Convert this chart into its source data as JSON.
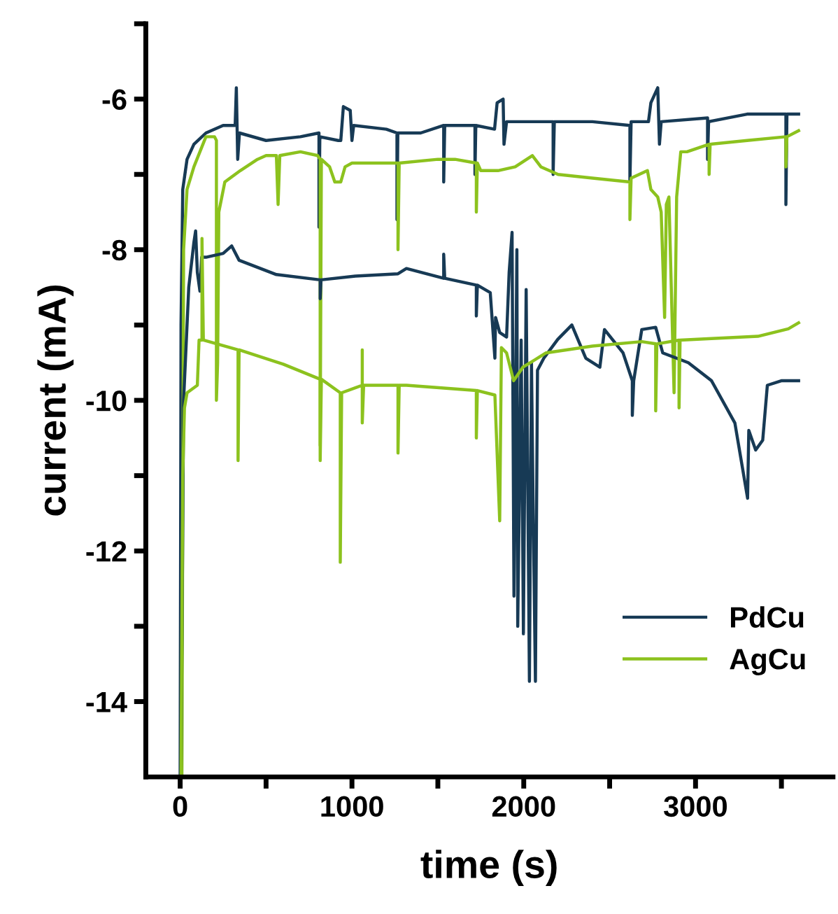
{
  "chart_data": {
    "type": "line",
    "xlabel": "time (s)",
    "ylabel": "current (mA)",
    "xlim": [
      -200,
      3800
    ],
    "ylim": [
      -15,
      -5
    ],
    "xticks": [
      0,
      {
        "value": 500,
        "label": null
      },
      1000,
      {
        "value": 1500,
        "label": null
      },
      2000,
      {
        "value": 2500,
        "label": null
      },
      3000,
      {
        "value": 3500,
        "label": null
      }
    ],
    "yticks": [
      {
        "value": -5,
        "label": null
      },
      -6,
      {
        "value": -7,
        "label": null
      },
      -8,
      {
        "value": -9,
        "label": null
      },
      -10,
      {
        "value": -11,
        "label": null
      },
      -12,
      {
        "value": -13,
        "label": null
      },
      -14
    ],
    "grid": false,
    "legend": "bottom right",
    "marker": "none",
    "line_style": "solid",
    "series": [
      {
        "name": "PdCu",
        "color": "#173a55",
        "x": [
          0,
          5,
          15,
          40,
          80,
          150,
          250,
          320,
          327,
          335,
          345,
          500,
          700,
          808,
          808,
          813,
          920,
          935,
          950,
          990,
          1000,
          1010,
          1200,
          1262,
          1262,
          1267,
          1400,
          1534,
          1534,
          1540,
          1716,
          1716,
          1721,
          1830,
          1845,
          1880,
          1885,
          1900,
          2171,
          2171,
          2178,
          2400,
          2618,
          2618,
          2625,
          2726,
          2740,
          2780,
          2790,
          2800,
          3070,
          3070,
          3076,
          3300,
          3526,
          3526,
          3532,
          3600
        ],
        "values": [
          -15,
          -9,
          -7.2,
          -6.8,
          -6.6,
          -6.45,
          -6.35,
          -6.35,
          -5.85,
          -6.8,
          -6.45,
          -6.55,
          -6.5,
          -6.45,
          -7.7,
          -6.5,
          -6.55,
          -6.55,
          -6.1,
          -6.15,
          -6.55,
          -6.35,
          -6.4,
          -6.45,
          -7.6,
          -6.45,
          -6.45,
          -6.35,
          -7.1,
          -6.35,
          -6.35,
          -7.0,
          -6.35,
          -6.4,
          -6.05,
          -6.0,
          -6.6,
          -6.3,
          -6.3,
          -7.0,
          -6.3,
          -6.3,
          -6.35,
          -7.1,
          -6.3,
          -6.3,
          -6.05,
          -5.85,
          -6.6,
          -6.3,
          -6.25,
          -6.8,
          -6.3,
          -6.2,
          -6.2,
          -7.4,
          -6.2,
          -6.2
        ]
      },
      {
        "name": "AgCu",
        "color": "#8cc21e",
        "x": [
          10,
          20,
          40,
          80,
          150,
          200,
          211,
          211,
          218,
          225,
          260,
          350,
          450,
          500,
          560,
          570,
          580,
          700,
          800,
          815,
          815,
          822,
          870,
          900,
          935,
          960,
          1000,
          1268,
          1268,
          1275,
          1500,
          1600,
          1724,
          1724,
          1730,
          1750,
          1850,
          1950,
          2050,
          2100,
          2200,
          2400,
          2618,
          2618,
          2625,
          2720,
          2740,
          2780,
          2800,
          2820,
          2830,
          2845,
          2875,
          2890,
          2914,
          2950,
          3079,
          3079,
          3085,
          3300,
          3526,
          3526,
          3532,
          3600
        ],
        "values": [
          -15,
          -8,
          -7.2,
          -6.9,
          -6.5,
          -6.5,
          -6.55,
          -10,
          -9.5,
          -7.5,
          -7.1,
          -6.95,
          -6.8,
          -6.75,
          -6.75,
          -7.4,
          -6.75,
          -6.7,
          -6.75,
          -6.8,
          -10.6,
          -6.8,
          -6.9,
          -7.1,
          -7.1,
          -6.9,
          -6.85,
          -6.85,
          -8.0,
          -6.85,
          -6.8,
          -6.8,
          -6.85,
          -7.5,
          -6.85,
          -6.95,
          -6.95,
          -6.9,
          -6.75,
          -6.9,
          -7.0,
          -7.05,
          -7.1,
          -7.6,
          -7.05,
          -6.95,
          -7.2,
          -7.3,
          -7.5,
          -8.9,
          -7.4,
          -7.3,
          -9.9,
          -7.3,
          -6.7,
          -6.7,
          -6.6,
          -7.0,
          -6.6,
          -6.55,
          -6.5,
          -6.9,
          -6.5,
          -6.42
        ]
      },
      {
        "color": "#173a55",
        "x": [
          5,
          20,
          50,
          80,
          90,
          100,
          115,
          125,
          150,
          250,
          300,
          343,
          560,
          815,
          815,
          820,
          1020,
          1268,
          1317,
          1534,
          1534,
          1540,
          1724,
          1724,
          1730,
          1805,
          1832,
          1836,
          1860,
          1900,
          1915,
          1932,
          1943,
          1960,
          1965,
          1985,
          1998,
          2014,
          2033,
          2045,
          2055,
          2068,
          2080,
          2117,
          2198,
          2280,
          2361,
          2443,
          2470,
          2578,
          2632,
          2632,
          2640,
          2687,
          2768,
          2809,
          2958,
          3093,
          3229,
          3303,
          3310,
          3350,
          3391,
          3418,
          3499,
          3600
        ],
        "values": [
          -15,
          -10,
          -8.5,
          -7.9,
          -7.75,
          -8.3,
          -8.55,
          -8.1,
          -8.1,
          -8.05,
          -7.95,
          -8.14,
          -8.33,
          -8.4,
          -8.65,
          -8.4,
          -8.35,
          -8.32,
          -8.25,
          -8.38,
          -8.06,
          -8.38,
          -8.47,
          -8.88,
          -8.47,
          -8.57,
          -9.44,
          -8.9,
          -9.1,
          -9.16,
          -8.3,
          -7.77,
          -12.6,
          -8.0,
          -13.0,
          -9.2,
          -13.1,
          -8.53,
          -13.73,
          -9.5,
          -11.5,
          -13.73,
          -9.6,
          -9.44,
          -9.19,
          -9.0,
          -9.44,
          -9.56,
          -9.06,
          -9.37,
          -9.74,
          -10.2,
          -9.74,
          -9.06,
          -9.03,
          -9.37,
          -9.5,
          -9.74,
          -10.3,
          -11.3,
          -10.4,
          -10.66,
          -10.53,
          -9.8,
          -9.74,
          -9.74
        ]
      },
      {
        "color": "#8cc21e",
        "x": [
          5,
          15,
          25,
          40,
          100,
          110,
          127,
          127,
          135,
          337,
          337,
          343,
          600,
          815,
          815,
          822,
          932,
          932,
          940,
          1060,
          1060,
          1060,
          1068,
          1268,
          1268,
          1275,
          1317,
          1724,
          1724,
          1730,
          1832,
          1860,
          1870,
          1900,
          1941,
          1995,
          2130,
          2400,
          2687,
          2768,
          2768,
          2775,
          2904,
          2904,
          2910,
          3093,
          3363,
          3540,
          3600
        ],
        "values": [
          -15,
          -11,
          -10.1,
          -9.9,
          -9.8,
          -9.2,
          -9.2,
          -7.85,
          -9.2,
          -9.33,
          -10.8,
          -9.33,
          -9.52,
          -9.72,
          -10.8,
          -9.72,
          -9.9,
          -12.15,
          -9.9,
          -9.8,
          -9.33,
          -10.3,
          -9.8,
          -9.8,
          -10.7,
          -9.8,
          -9.8,
          -9.87,
          -10.5,
          -9.87,
          -9.93,
          -11.6,
          -9.3,
          -9.37,
          -9.74,
          -9.56,
          -9.37,
          -9.28,
          -9.22,
          -9.25,
          -10.14,
          -9.25,
          -9.2,
          -10.1,
          -9.2,
          -9.18,
          -9.15,
          -9.05,
          -8.97
        ]
      }
    ]
  }
}
